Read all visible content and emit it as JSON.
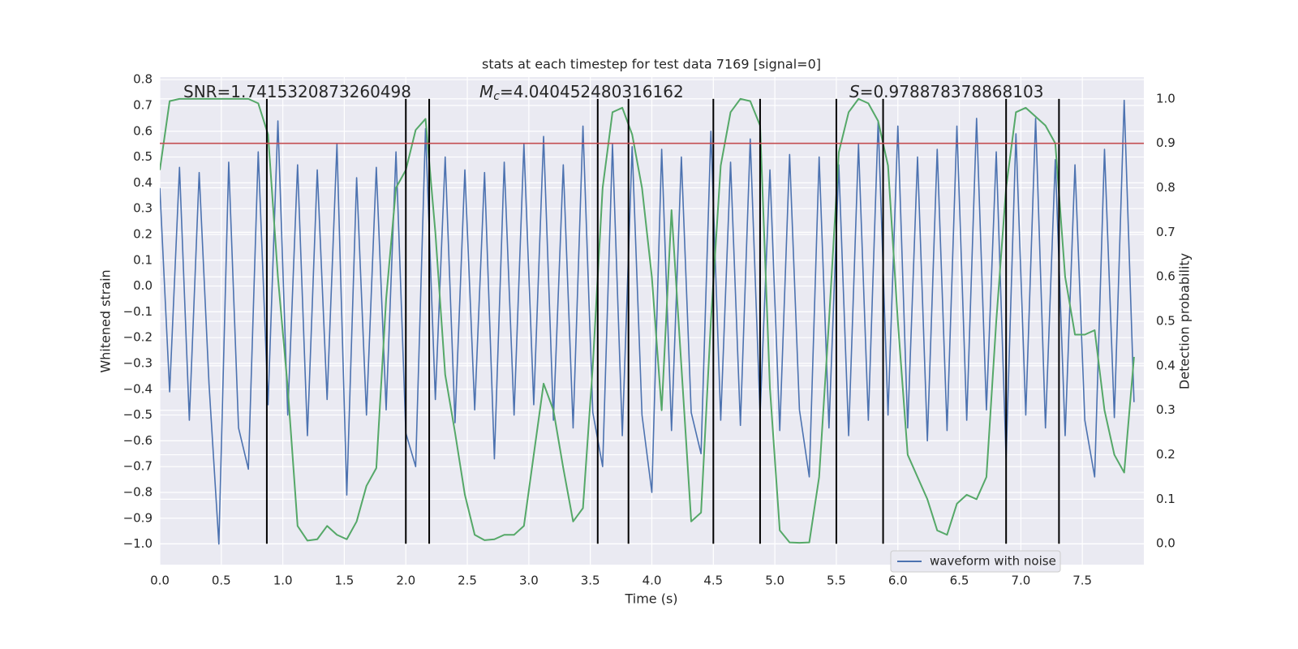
{
  "chart_data": {
    "type": "line",
    "title": "stats at each timestep for test data 7169 [signal=0]",
    "xlabel": "Time (s)",
    "ylabel": "Whitened strain",
    "y2label": "Detection probability",
    "annotations": [
      {
        "text": "SNR=1.7415320873260498"
      },
      {
        "italic": "M",
        "sub": "c",
        "text": "=4.040452480316162"
      },
      {
        "italic": "S",
        "text": "=0.978878378868103"
      }
    ],
    "x": [
      0,
      0.08,
      0.16,
      0.24,
      0.32,
      0.4,
      0.48,
      0.56,
      0.64,
      0.72,
      0.8,
      0.88,
      0.96,
      1.04,
      1.12,
      1.2,
      1.28,
      1.36,
      1.44,
      1.52,
      1.6,
      1.68,
      1.76,
      1.84,
      1.92,
      2.0,
      2.08,
      2.16,
      2.24,
      2.32,
      2.4,
      2.48,
      2.56,
      2.64,
      2.72,
      2.8,
      2.88,
      2.96,
      3.04,
      3.12,
      3.2,
      3.28,
      3.36,
      3.44,
      3.52,
      3.6,
      3.68,
      3.76,
      3.84,
      3.92,
      4.0,
      4.08,
      4.16,
      4.24,
      4.32,
      4.4,
      4.48,
      4.56,
      4.64,
      4.72,
      4.8,
      4.88,
      4.96,
      5.04,
      5.12,
      5.2,
      5.28,
      5.36,
      5.44,
      5.52,
      5.6,
      5.68,
      5.76,
      5.84,
      5.92,
      6.0,
      6.08,
      6.16,
      6.24,
      6.32,
      6.4,
      6.48,
      6.56,
      6.64,
      6.72,
      6.8,
      6.88,
      6.96,
      7.04,
      7.12,
      7.2,
      7.28,
      7.36,
      7.44,
      7.52,
      7.6,
      7.68,
      7.76,
      7.84,
      7.92
    ],
    "series": [
      {
        "name": "waveform with noise",
        "color": "#4c72b0",
        "values": [
          0.38,
          -0.41,
          0.46,
          -0.52,
          0.44,
          -0.38,
          -1.0,
          0.48,
          -0.55,
          -0.71,
          0.52,
          -0.46,
          0.64,
          -0.5,
          0.47,
          -0.58,
          0.45,
          -0.44,
          0.55,
          -0.81,
          0.42,
          -0.5,
          0.46,
          -0.48,
          0.52,
          -0.57,
          -0.7,
          0.61,
          -0.44,
          0.5,
          -0.53,
          0.45,
          -0.48,
          0.44,
          -0.67,
          0.48,
          -0.5,
          0.55,
          -0.46,
          0.58,
          -0.52,
          0.47,
          -0.55,
          0.62,
          -0.49,
          -0.7,
          0.55,
          -0.58,
          0.54,
          -0.5,
          -0.8,
          0.53,
          -0.56,
          0.5,
          -0.49,
          -0.65,
          0.6,
          -0.52,
          0.48,
          -0.54,
          0.57,
          -0.5,
          0.45,
          -0.56,
          0.51,
          -0.48,
          -0.74,
          0.5,
          -0.55,
          0.47,
          -0.58,
          0.55,
          -0.52,
          0.64,
          -0.5,
          0.62,
          -0.55,
          0.5,
          -0.6,
          0.53,
          -0.56,
          0.62,
          -0.52,
          0.65,
          -0.48,
          0.52,
          -0.67,
          0.59,
          -0.5,
          0.65,
          -0.55,
          0.49,
          -0.58,
          0.47,
          -0.52,
          -0.74,
          0.53,
          -0.51,
          0.72,
          -0.45
        ]
      },
      {
        "color": "#55a868",
        "axis": "y2",
        "values": [
          0.84,
          0.995,
          1.0,
          1.0,
          1.0,
          1.0,
          1.0,
          1.0,
          1.0,
          1.0,
          0.99,
          0.92,
          0.6,
          0.35,
          0.04,
          0.007,
          0.01,
          0.04,
          0.02,
          0.01,
          0.05,
          0.13,
          0.17,
          0.55,
          0.8,
          0.84,
          0.93,
          0.955,
          0.7,
          0.38,
          0.25,
          0.11,
          0.02,
          0.008,
          0.01,
          0.02,
          0.02,
          0.04,
          0.2,
          0.36,
          0.3,
          0.17,
          0.05,
          0.08,
          0.4,
          0.8,
          0.97,
          0.98,
          0.92,
          0.8,
          0.6,
          0.3,
          0.75,
          0.4,
          0.05,
          0.07,
          0.5,
          0.85,
          0.97,
          1.0,
          0.995,
          0.94,
          0.35,
          0.03,
          0.003,
          0.002,
          0.003,
          0.15,
          0.5,
          0.88,
          0.97,
          1.0,
          0.99,
          0.95,
          0.85,
          0.5,
          0.2,
          0.15,
          0.1,
          0.03,
          0.02,
          0.09,
          0.11,
          0.1,
          0.15,
          0.5,
          0.8,
          0.97,
          0.98,
          0.96,
          0.94,
          0.9,
          0.6,
          0.47,
          0.47,
          0.48,
          0.3,
          0.2,
          0.16,
          0.42
        ]
      }
    ],
    "threshold": 0.9,
    "threshold_color": "#c44e52",
    "vlines": [
      0.87,
      2.0,
      2.19,
      3.56,
      3.81,
      4.5,
      4.88,
      5.5,
      5.88,
      6.88,
      7.31
    ],
    "vline_color": "#000000",
    "xlim": [
      0,
      8.0
    ],
    "ylim": [
      -1.08,
      0.81
    ],
    "y2lim": [
      -0.047,
      1.049
    ],
    "xticks": [
      {
        "value": 0,
        "label": "0.0"
      },
      0.5,
      {
        "value": 1,
        "label": "1.0"
      },
      1.5,
      {
        "value": 2,
        "label": "2.0"
      },
      2.5,
      {
        "value": 3,
        "label": "3.0"
      },
      3.5,
      {
        "value": 4,
        "label": "4.0"
      },
      4.5,
      {
        "value": 5,
        "label": "5.0"
      },
      5.5,
      {
        "value": 6,
        "label": "6.0"
      },
      6.5,
      {
        "value": 7,
        "label": "7.0"
      },
      7.5
    ],
    "yticks": [
      {
        "value": -1.0,
        "label": "−1.0"
      },
      {
        "value": -0.9,
        "label": "−0.9"
      },
      {
        "value": -0.8,
        "label": "−0.8"
      },
      {
        "value": -0.7,
        "label": "−0.7"
      },
      {
        "value": -0.6,
        "label": "−0.6"
      },
      {
        "value": -0.5,
        "label": "−0.5"
      },
      {
        "value": -0.4,
        "label": "−0.4"
      },
      {
        "value": -0.3,
        "label": "−0.3"
      },
      {
        "value": -0.2,
        "label": "−0.2"
      },
      {
        "value": -0.1,
        "label": "−0.1"
      },
      {
        "value": 0,
        "label": "0.0"
      },
      0.1,
      0.2,
      0.3,
      0.4,
      0.5,
      0.6,
      0.7,
      0.8
    ],
    "y2ticks": [
      {
        "value": 0,
        "label": "0.0"
      },
      0.1,
      0.2,
      0.3,
      0.4,
      0.5,
      0.6,
      0.7,
      0.8,
      0.9,
      {
        "value": 1,
        "label": "1.0"
      }
    ],
    "grid": true,
    "legend": "lower right"
  }
}
